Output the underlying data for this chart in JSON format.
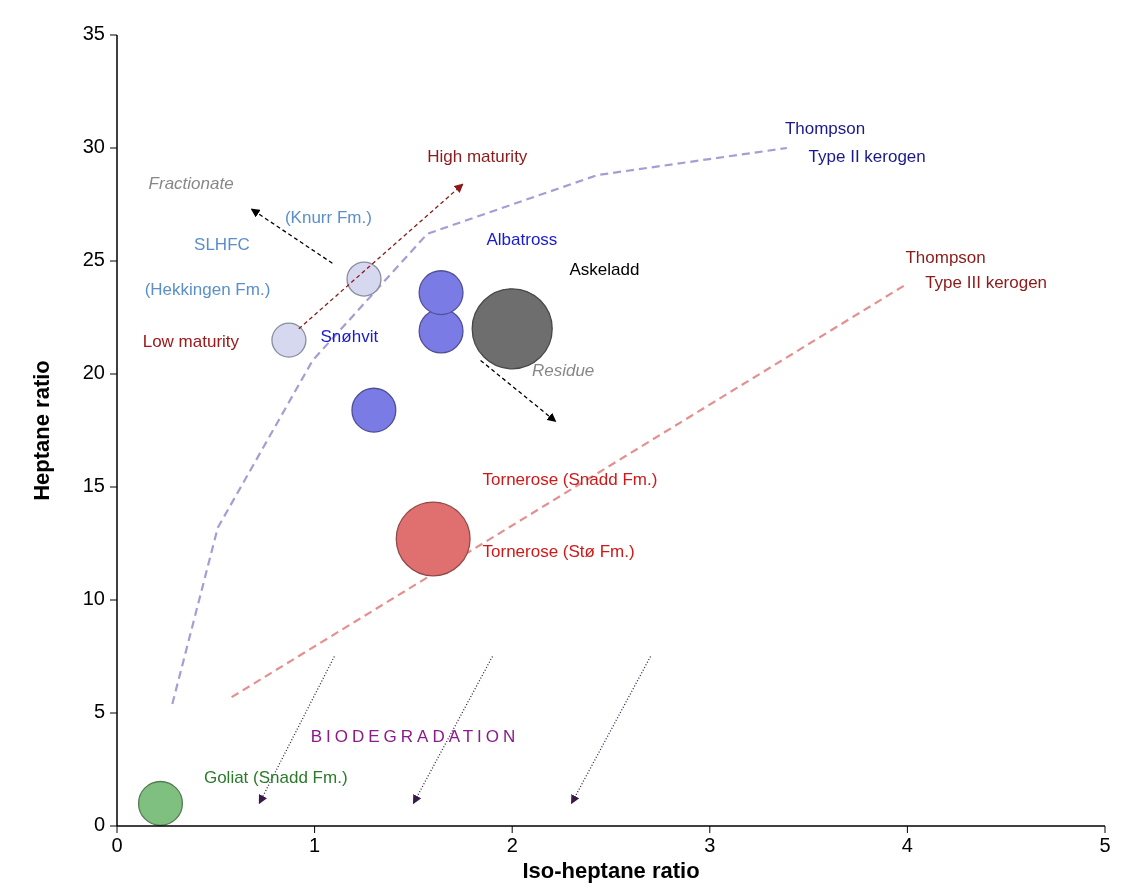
{
  "chart_data": {
    "type": "bubble",
    "xlabel": "Iso-heptane ratio",
    "ylabel": "Heptane ratio",
    "xlim": [
      0,
      5
    ],
    "ylim": [
      0,
      35
    ],
    "xticks": [
      0,
      1,
      2,
      3,
      4,
      5
    ],
    "yticks": [
      0,
      5,
      10,
      15,
      20,
      25,
      30,
      35
    ],
    "grid": false,
    "series": [
      {
        "type": "line",
        "color": "#a99bd4",
        "line_style": "dashed",
        "marker": "none",
        "x": [
          0.28,
          0.51,
          0.99,
          1.57,
          2.43,
          3.39
        ],
        "values": [
          5.4,
          13.2,
          20.6,
          26.2,
          28.8,
          30.0
        ]
      },
      {
        "type": "line",
        "color": "#e59090",
        "line_style": "dashed",
        "marker": "none",
        "x": [
          0.58,
          4.0
        ],
        "values": [
          5.7,
          24.0
        ]
      },
      {
        "color": "#d6d8f0",
        "x": [
          0.87,
          1.25
        ],
        "values": [
          21.5,
          24.2
        ],
        "sizes": [
          0.18,
          0.18
        ]
      },
      {
        "color": "#7b7be6",
        "x": [
          1.3,
          1.64,
          1.64
        ],
        "values": [
          18.4,
          21.9,
          23.6
        ],
        "sizes": [
          0.3,
          0.3,
          0.3
        ]
      },
      {
        "color": "#6e6e6e",
        "x": [
          2.0
        ],
        "values": [
          22.0
        ],
        "sizes": [
          1
        ]
      },
      {
        "color": "#e07070",
        "x": [
          1.6
        ],
        "values": [
          12.7
        ],
        "sizes": [
          0.85
        ]
      },
      {
        "color": "#7fbf7f",
        "x": [
          0.22
        ],
        "values": [
          1.0
        ],
        "sizes": [
          0.3
        ]
      }
    ],
    "annotations": [
      "Thompson",
      "Type II kerogen",
      "Thompson",
      "Type III kerogen",
      "High maturity",
      "Fractionate",
      "(Knurr Fm.)",
      "SLHFC",
      "(Hekkingen Fm.)",
      "Low maturity",
      "Albatross",
      "Askeladd",
      "Snøhvit",
      "Residue",
      "Tornerose (Snadd Fm.)",
      "Tornerose (Stø Fm.)",
      "BIODEGRADATION",
      "Goliat (Snadd Fm.)"
    ]
  }
}
